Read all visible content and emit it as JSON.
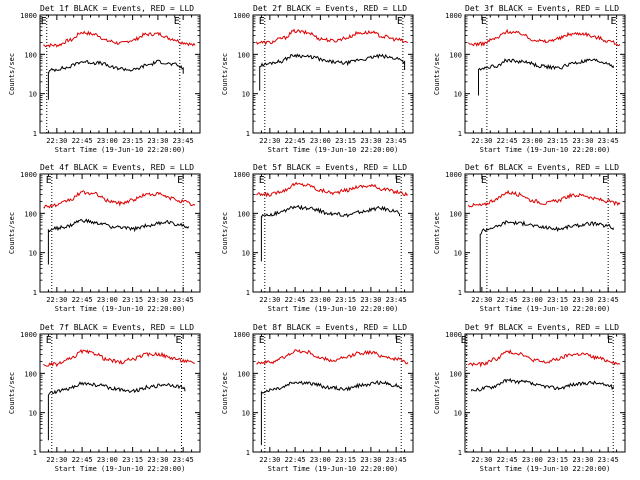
{
  "colors": {
    "events": "#000000",
    "lld": "#dd0000",
    "axes": "#000000",
    "background": "#ffffff"
  },
  "chart_data": [
    {
      "type": "line",
      "title": "Det 1f BLACK = Events, RED = LLD",
      "xlabel": "Start Time (19-Jun-10 22:20:00)",
      "ylabel": "Counts/sec",
      "x_ticks": [
        "22:30",
        "22:45",
        "23:00",
        "23:15",
        "23:30",
        "23:45"
      ],
      "y_ticks": [
        "1",
        "10",
        "100",
        "1000"
      ],
      "yscale": "log",
      "ylim": [
        1,
        1000
      ],
      "xlim": [
        "22:20",
        "23:55"
      ],
      "markers": [
        "22:24",
        "23:43"
      ],
      "marker_labels": [
        "E",
        "E"
      ],
      "series": [
        {
          "color": "#dd0000",
          "x": [
            "22:22",
            "22:30",
            "22:38",
            "22:45",
            "22:53",
            "23:00",
            "23:08",
            "23:15",
            "23:23",
            "23:30",
            "23:38",
            "23:45",
            "23:52"
          ],
          "values": [
            170,
            170,
            230,
            360,
            320,
            220,
            190,
            230,
            320,
            330,
            250,
            200,
            170
          ]
        },
        {
          "color": "#000000",
          "x": [
            "22:25",
            "22:25",
            "22:27",
            "22:35",
            "22:45",
            "22:55",
            "23:05",
            "23:15",
            "23:25",
            "23:30",
            "23:40",
            "23:45",
            "23:45"
          ],
          "values": [
            7,
            35,
            40,
            45,
            65,
            60,
            45,
            40,
            55,
            65,
            55,
            45,
            32
          ]
        }
      ]
    },
    {
      "type": "line",
      "title": "Det 2f BLACK = Events, RED = LLD",
      "xlabel": "Start Time (19-Jun-10 22:20:00)",
      "ylabel": "Counts/sec",
      "x_ticks": [
        "22:30",
        "22:45",
        "23:00",
        "23:15",
        "23:30",
        "23:45"
      ],
      "y_ticks": [
        "1",
        "10",
        "100",
        "1000"
      ],
      "yscale": "log",
      "ylim": [
        1,
        1000
      ],
      "xlim": [
        "22:20",
        "23:55"
      ],
      "markers": [
        "22:27",
        "23:49"
      ],
      "marker_labels": [
        "E",
        "E"
      ],
      "series": [
        {
          "color": "#dd0000",
          "x": [
            "22:22",
            "22:30",
            "22:38",
            "22:45",
            "22:53",
            "23:00",
            "23:08",
            "23:15",
            "23:23",
            "23:30",
            "23:38",
            "23:45",
            "23:52"
          ],
          "values": [
            200,
            200,
            260,
            390,
            350,
            250,
            220,
            260,
            350,
            360,
            280,
            240,
            200
          ]
        },
        {
          "color": "#000000",
          "x": [
            "22:24",
            "22:24",
            "22:26",
            "22:35",
            "22:45",
            "22:55",
            "23:05",
            "23:15",
            "23:25",
            "23:35",
            "23:45",
            "23:50",
            "23:50"
          ],
          "values": [
            12,
            50,
            55,
            65,
            95,
            85,
            65,
            60,
            75,
            90,
            80,
            65,
            40
          ]
        }
      ]
    },
    {
      "type": "line",
      "title": "Det 3f BLACK = Events, RED = LLD",
      "xlabel": "Start Time (19-Jun-10 22:20:00)",
      "ylabel": "Counts/sec",
      "x_ticks": [
        "22:30",
        "22:45",
        "23:00",
        "23:15",
        "23:30",
        "23:45"
      ],
      "y_ticks": [
        "1",
        "10",
        "100",
        "1000"
      ],
      "yscale": "log",
      "ylim": [
        1,
        1000
      ],
      "xlim": [
        "22:20",
        "23:55"
      ],
      "markers": [
        "22:33",
        "23:50"
      ],
      "marker_labels": [
        "E",
        "E"
      ],
      "series": [
        {
          "color": "#dd0000",
          "x": [
            "22:22",
            "22:30",
            "22:38",
            "22:45",
            "22:53",
            "23:00",
            "23:08",
            "23:15",
            "23:23",
            "23:30",
            "23:38",
            "23:45",
            "23:52"
          ],
          "values": [
            180,
            185,
            250,
            380,
            340,
            240,
            210,
            250,
            330,
            340,
            270,
            220,
            180
          ]
        },
        {
          "color": "#000000",
          "x": [
            "22:28",
            "22:28",
            "22:30",
            "22:38",
            "22:45",
            "22:55",
            "23:05",
            "23:15",
            "23:25",
            "23:35",
            "23:45",
            "23:48",
            "23:48"
          ],
          "values": [
            9,
            40,
            45,
            50,
            70,
            65,
            50,
            45,
            60,
            70,
            60,
            50,
            45
          ]
        }
      ]
    },
    {
      "type": "line",
      "title": "Det 4f BLACK = Events, RED = LLD",
      "xlabel": "Start Time (19-Jun-10 22:20:00)",
      "ylabel": "Counts/sec",
      "x_ticks": [
        "22:30",
        "22:45",
        "23:00",
        "23:15",
        "23:30",
        "23:45"
      ],
      "y_ticks": [
        "1",
        "10",
        "100",
        "1000"
      ],
      "yscale": "log",
      "ylim": [
        1,
        1000
      ],
      "xlim": [
        "22:20",
        "23:55"
      ],
      "markers": [
        "22:27",
        "23:45"
      ],
      "marker_labels": [
        "E",
        "E"
      ],
      "series": [
        {
          "color": "#dd0000",
          "x": [
            "22:22",
            "22:30",
            "22:38",
            "22:45",
            "22:53",
            "23:00",
            "23:08",
            "23:15",
            "23:23",
            "23:30",
            "23:38",
            "23:45",
            "23:52"
          ],
          "values": [
            150,
            160,
            220,
            340,
            310,
            210,
            180,
            220,
            300,
            310,
            240,
            200,
            160
          ]
        },
        {
          "color": "#000000",
          "x": [
            "22:25",
            "22:25",
            "22:27",
            "22:35",
            "22:45",
            "22:55",
            "23:05",
            "23:15",
            "23:25",
            "23:35",
            "23:45",
            "23:48",
            "23:48"
          ],
          "values": [
            5,
            35,
            40,
            45,
            65,
            55,
            45,
            40,
            50,
            60,
            50,
            45,
            42
          ]
        }
      ]
    },
    {
      "type": "line",
      "title": "Det 5f BLACK = Events, RED = LLD",
      "xlabel": "Start Time (19-Jun-10 22:20:00)",
      "ylabel": "Counts/sec",
      "x_ticks": [
        "22:30",
        "22:45",
        "23:00",
        "23:15",
        "23:30",
        "23:45"
      ],
      "y_ticks": [
        "1",
        "10",
        "100",
        "1000"
      ],
      "yscale": "log",
      "ylim": [
        1,
        1000
      ],
      "xlim": [
        "22:20",
        "23:55"
      ],
      "markers": [
        "22:27",
        "23:48"
      ],
      "marker_labels": [
        "E",
        "E"
      ],
      "series": [
        {
          "color": "#dd0000",
          "x": [
            "22:22",
            "22:30",
            "22:38",
            "22:45",
            "22:53",
            "23:00",
            "23:08",
            "23:15",
            "23:23",
            "23:30",
            "23:38",
            "23:45",
            "23:52"
          ],
          "values": [
            300,
            300,
            380,
            550,
            520,
            380,
            330,
            380,
            480,
            500,
            410,
            350,
            300
          ]
        },
        {
          "color": "#000000",
          "x": [
            "22:25",
            "22:25",
            "22:27",
            "22:35",
            "22:45",
            "22:55",
            "23:05",
            "23:15",
            "23:25",
            "23:35",
            "23:45",
            "23:47",
            "23:47"
          ],
          "values": [
            6,
            85,
            90,
            100,
            145,
            130,
            100,
            90,
            110,
            135,
            115,
            95,
            85
          ]
        }
      ]
    },
    {
      "type": "line",
      "title": "Det 6f BLACK = Events, RED = LLD",
      "xlabel": "Start Time (19-Jun-10 22:20:00)",
      "ylabel": "Counts/sec",
      "x_ticks": [
        "22:30",
        "22:45",
        "23:00",
        "23:15",
        "23:30",
        "23:45"
      ],
      "y_ticks": [
        "1",
        "10",
        "100",
        "1000"
      ],
      "yscale": "log",
      "ylim": [
        1,
        1000
      ],
      "xlim": [
        "22:20",
        "23:55"
      ],
      "markers": [
        "22:33",
        "23:45"
      ],
      "marker_labels": [
        "E",
        "E"
      ],
      "series": [
        {
          "color": "#dd0000",
          "x": [
            "22:22",
            "22:30",
            "22:38",
            "22:45",
            "22:53",
            "23:00",
            "23:08",
            "23:15",
            "23:23",
            "23:30",
            "23:38",
            "23:45",
            "23:52"
          ],
          "values": [
            160,
            160,
            220,
            340,
            300,
            210,
            180,
            210,
            280,
            290,
            230,
            200,
            170
          ]
        },
        {
          "color": "#000000",
          "x": [
            "22:29",
            "22:29",
            "22:31",
            "22:38",
            "22:45",
            "22:55",
            "23:05",
            "23:15",
            "23:25",
            "23:35",
            "23:45",
            "23:48",
            "23:48"
          ],
          "values": [
            1,
            30,
            38,
            45,
            60,
            55,
            45,
            40,
            48,
            55,
            48,
            42,
            38
          ]
        }
      ]
    },
    {
      "type": "line",
      "title": "Det 7f BLACK = Events, RED = LLD",
      "xlabel": "Start Time (19-Jun-10 22:20:00)",
      "ylabel": "Counts/sec",
      "x_ticks": [
        "22:30",
        "22:45",
        "23:00",
        "23:15",
        "23:30",
        "23:45"
      ],
      "y_ticks": [
        "1",
        "10",
        "100",
        "1000"
      ],
      "yscale": "log",
      "ylim": [
        1,
        1000
      ],
      "xlim": [
        "22:20",
        "23:55"
      ],
      "markers": [
        "22:27",
        "23:44"
      ],
      "marker_labels": [
        "E",
        "E"
      ],
      "series": [
        {
          "color": "#dd0000",
          "x": [
            "22:22",
            "22:30",
            "22:38",
            "22:45",
            "22:53",
            "23:00",
            "23:08",
            "23:15",
            "23:23",
            "23:30",
            "23:38",
            "23:45",
            "23:52"
          ],
          "values": [
            160,
            170,
            230,
            360,
            320,
            220,
            190,
            230,
            300,
            310,
            250,
            210,
            180
          ]
        },
        {
          "color": "#000000",
          "x": [
            "22:25",
            "22:25",
            "22:27",
            "22:35",
            "22:45",
            "22:55",
            "23:05",
            "23:15",
            "23:25",
            "23:35",
            "23:45",
            "23:46",
            "23:46"
          ],
          "values": [
            2,
            28,
            32,
            38,
            55,
            50,
            40,
            36,
            45,
            52,
            45,
            40,
            35
          ]
        }
      ]
    },
    {
      "type": "line",
      "title": "Det 8f BLACK = Events, RED = LLD",
      "xlabel": "Start Time (19-Jun-10 22:20:00)",
      "ylabel": "Counts/sec",
      "x_ticks": [
        "22:30",
        "22:45",
        "23:00",
        "23:15",
        "23:30",
        "23:45"
      ],
      "y_ticks": [
        "1",
        "10",
        "100",
        "1000"
      ],
      "yscale": "log",
      "ylim": [
        1,
        1000
      ],
      "xlim": [
        "22:20",
        "23:55"
      ],
      "markers": [
        "22:27",
        "23:48"
      ],
      "marker_labels": [
        "E",
        "E"
      ],
      "series": [
        {
          "color": "#dd0000",
          "x": [
            "22:22",
            "22:30",
            "22:38",
            "22:45",
            "22:53",
            "23:00",
            "23:08",
            "23:15",
            "23:23",
            "23:30",
            "23:38",
            "23:45",
            "23:52"
          ],
          "values": [
            190,
            190,
            250,
            370,
            340,
            240,
            210,
            250,
            330,
            340,
            270,
            230,
            190
          ]
        },
        {
          "color": "#000000",
          "x": [
            "22:25",
            "22:25",
            "22:27",
            "22:35",
            "22:45",
            "22:55",
            "23:05",
            "23:15",
            "23:25",
            "23:35",
            "23:45",
            "23:48",
            "23:48"
          ],
          "values": [
            1.5,
            32,
            36,
            42,
            60,
            55,
            44,
            40,
            50,
            58,
            50,
            44,
            40
          ]
        }
      ]
    },
    {
      "type": "line",
      "title": "Det 9f BLACK = Events, RED = LLD",
      "xlabel": "Start Time (19-Jun-10 22:20:00)",
      "ylabel": "Counts/sec",
      "x_ticks": [
        "22:30",
        "22:45",
        "23:00",
        "23:15",
        "23:30",
        "23:45"
      ],
      "y_ticks": [
        "1",
        "10",
        "100",
        "1000"
      ],
      "yscale": "log",
      "ylim": [
        1,
        1000
      ],
      "xlim": [
        "22:20",
        "23:55"
      ],
      "markers": [
        "22:21",
        "23:48"
      ],
      "marker_labels": [
        "E",
        "E"
      ],
      "series": [
        {
          "color": "#dd0000",
          "x": [
            "22:22",
            "22:30",
            "22:38",
            "22:45",
            "22:53",
            "23:00",
            "23:08",
            "23:15",
            "23:23",
            "23:30",
            "23:38",
            "23:45",
            "23:52"
          ],
          "values": [
            170,
            170,
            230,
            350,
            320,
            220,
            190,
            230,
            300,
            310,
            250,
            210,
            170
          ]
        },
        {
          "color": "#000000",
          "x": [
            "22:24",
            "22:24",
            "22:26",
            "22:35",
            "22:45",
            "22:55",
            "23:05",
            "23:15",
            "23:25",
            "23:35",
            "23:45",
            "23:48",
            "23:48"
          ],
          "values": [
            35,
            35,
            38,
            45,
            65,
            60,
            48,
            42,
            52,
            58,
            50,
            44,
            40
          ]
        }
      ]
    }
  ]
}
